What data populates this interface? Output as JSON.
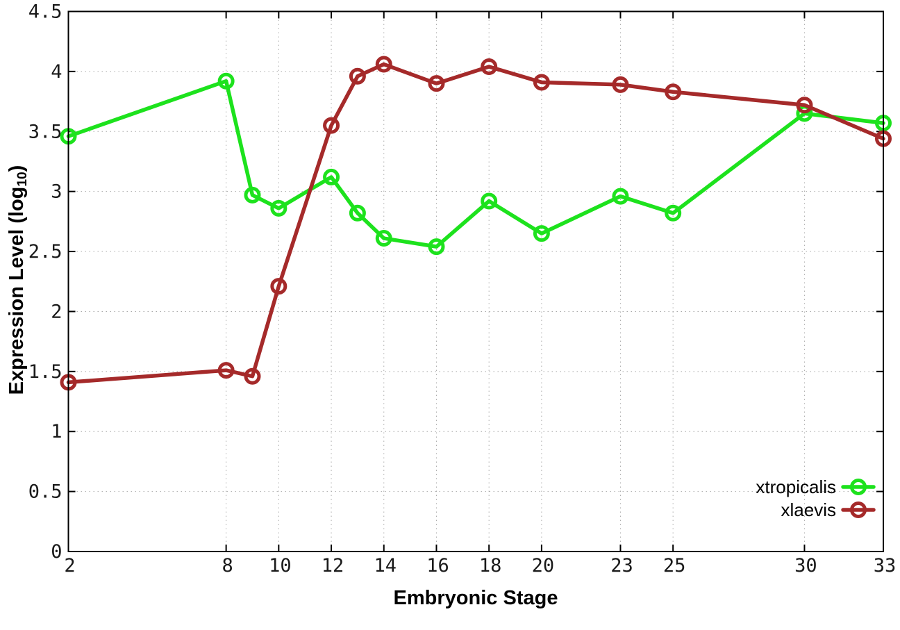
{
  "chart_data": {
    "type": "line",
    "title": "",
    "xlabel": "Embryonic Stage",
    "ylabel": "Expression Level (log10)",
    "ylabel_parts": {
      "main": "Expression Level (log",
      "sub": "10",
      "end": ")"
    },
    "x": [
      2,
      8,
      9,
      10,
      12,
      13,
      14,
      16,
      18,
      20,
      23,
      25,
      30,
      33
    ],
    "series": [
      {
        "name": "xtropicalis",
        "color": "#1de21d",
        "values": [
          3.46,
          3.92,
          2.97,
          2.86,
          3.12,
          2.82,
          2.61,
          2.54,
          2.92,
          2.65,
          2.96,
          2.82,
          3.65,
          3.57
        ]
      },
      {
        "name": "xlaevis",
        "color": "#a52a2a",
        "values": [
          1.41,
          1.51,
          1.46,
          2.21,
          3.55,
          3.96,
          4.06,
          3.9,
          4.04,
          3.91,
          3.89,
          3.83,
          3.72,
          3.44
        ]
      }
    ],
    "xlim": [
      2,
      33
    ],
    "ylim": [
      0,
      4.5
    ],
    "xticks": [
      2,
      8,
      10,
      12,
      14,
      16,
      18,
      20,
      23,
      25,
      30,
      33
    ],
    "xtick_labels": [
      "2",
      "8",
      "10",
      "12",
      "14",
      "16",
      "18",
      "20",
      "23",
      "25",
      "30",
      "33"
    ],
    "yticks": [
      0,
      0.5,
      1,
      1.5,
      2,
      2.5,
      3,
      3.5,
      4,
      4.5
    ],
    "ytick_labels": [
      "0",
      "0.5",
      "1",
      "1.5",
      "2",
      "2.5",
      "3",
      "3.5",
      "4",
      "4.5"
    ],
    "grid": true,
    "grid_style": "dotted",
    "legend_position": "bottom-right",
    "legend_entries": [
      "xtropicalis",
      "xlaevis"
    ],
    "border_color": "#000000",
    "gridline_color": "#aaaaaa"
  }
}
